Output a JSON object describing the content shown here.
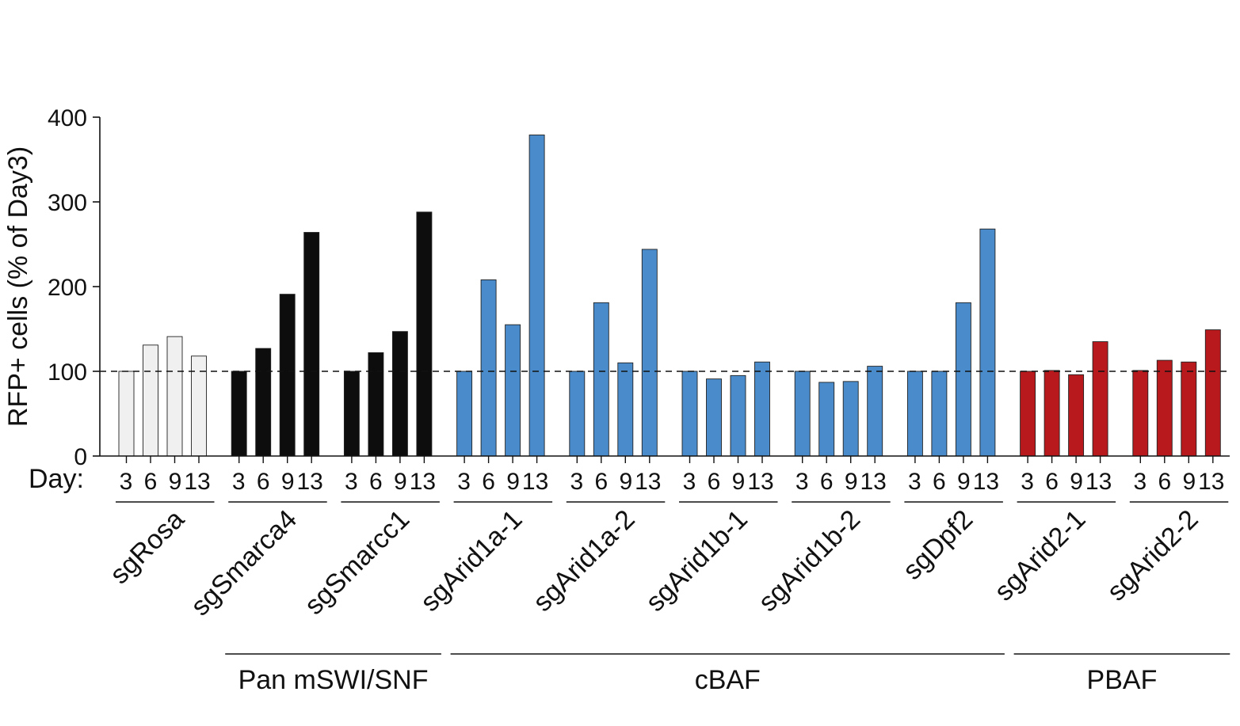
{
  "chart_data": {
    "type": "bar",
    "title": "",
    "ylabel": "RFP+ cells (% of Day3)",
    "xlabel": "Day:",
    "ylim": [
      0,
      400
    ],
    "yticks": [
      0,
      100,
      200,
      300,
      400
    ],
    "reference_line": 100,
    "days": [
      "3",
      "6",
      "9",
      "13"
    ],
    "groups": [
      {
        "name": "sgRosa",
        "values": [
          100,
          131,
          141,
          118
        ],
        "color": "#f0f0f0"
      },
      {
        "name": "sgSmarca4",
        "values": [
          100,
          127,
          191,
          264
        ],
        "color": "#0d0d0d"
      },
      {
        "name": "sgSmarcc1",
        "values": [
          100,
          122,
          147,
          288
        ],
        "color": "#0d0d0d"
      },
      {
        "name": "sgArid1a-1",
        "values": [
          100,
          208,
          155,
          379
        ],
        "color": "#4a8ccb"
      },
      {
        "name": "sgArid1a-2",
        "values": [
          100,
          181,
          110,
          244
        ],
        "color": "#4a8ccb"
      },
      {
        "name": "sgArid1b-1",
        "values": [
          100,
          91,
          95,
          111
        ],
        "color": "#4a8ccb"
      },
      {
        "name": "sgArid1b-2",
        "values": [
          100,
          87,
          88,
          106
        ],
        "color": "#4a8ccb"
      },
      {
        "name": "sgDpf2",
        "values": [
          100,
          100,
          181,
          268
        ],
        "color": "#4a8ccb"
      },
      {
        "name": "sgArid2-1",
        "values": [
          100,
          101,
          96,
          135
        ],
        "color": "#b8191c"
      },
      {
        "name": "sgArid2-2",
        "values": [
          101,
          113,
          111,
          149
        ],
        "color": "#b8191c"
      }
    ],
    "complexes": [
      {
        "name": "Pan mSWI/SNF",
        "from": 1,
        "to": 2
      },
      {
        "name": "cBAF",
        "from": 3,
        "to": 7
      },
      {
        "name": "PBAF",
        "from": 8,
        "to": 9
      }
    ],
    "grid": false,
    "legend": "none"
  }
}
